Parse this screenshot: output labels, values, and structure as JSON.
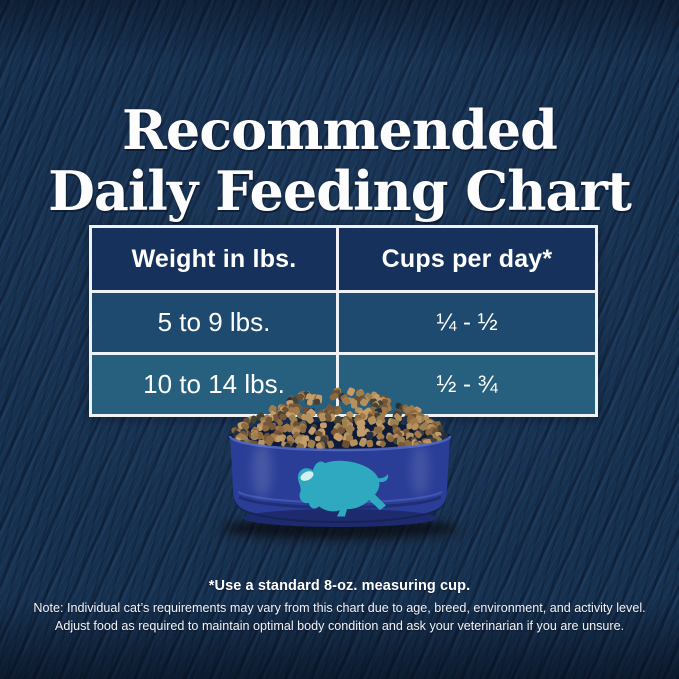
{
  "header": {
    "title_line1": "Recommended",
    "title_line2": "Daily Feeding Chart"
  },
  "table": {
    "col_weight": "Weight in lbs.",
    "col_cups": "Cups per day*",
    "rows": [
      {
        "weight": "5 to 9 lbs.",
        "cups": "¼ - ½"
      },
      {
        "weight": "10 to 14 lbs.",
        "cups": "½ - ¾"
      }
    ]
  },
  "footnote": "*Use a standard 8-oz. measuring cup.",
  "note": {
    "line1": "Note: Individual cat’s requirements may vary from this chart due to age, breed, environment, and activity level.",
    "line2": "Adjust food as required to maintain optimal body condition and ask your veterinarian if you are unsure."
  },
  "bowl": {
    "logo": "buffalo",
    "bowl_color": "#2b3e97",
    "logo_color": "#2fa9bf",
    "kibble_colors": [
      "#b5915f",
      "#a07a4a",
      "#8c6a3f",
      "#c49d6b",
      "#77573a",
      "#9b8051",
      "#6b4f33",
      "#454338",
      "#25303f"
    ]
  },
  "colors": {
    "background": "#16304f",
    "table_header": "#16325c",
    "table_row1": "#1d4a6e",
    "table_row2": "#26607e",
    "table_border": "#eef2f5",
    "text": "#ffffff"
  },
  "chart_data": {
    "type": "table",
    "title": "Recommended Daily Feeding Chart",
    "columns": [
      "Weight in lbs.",
      "Cups per day*"
    ],
    "rows": [
      [
        "5 to 9 lbs.",
        "¼ - ½"
      ],
      [
        "10 to 14 lbs.",
        "½ - ¾"
      ]
    ],
    "footnote": "*Use a standard 8-oz. measuring cup.",
    "notes": [
      "Note: Individual cat’s requirements may vary from this chart due to age, breed, environment, and activity level.",
      "Adjust food as required to maintain optimal body condition and ask your veterinarian if you are unsure."
    ]
  }
}
